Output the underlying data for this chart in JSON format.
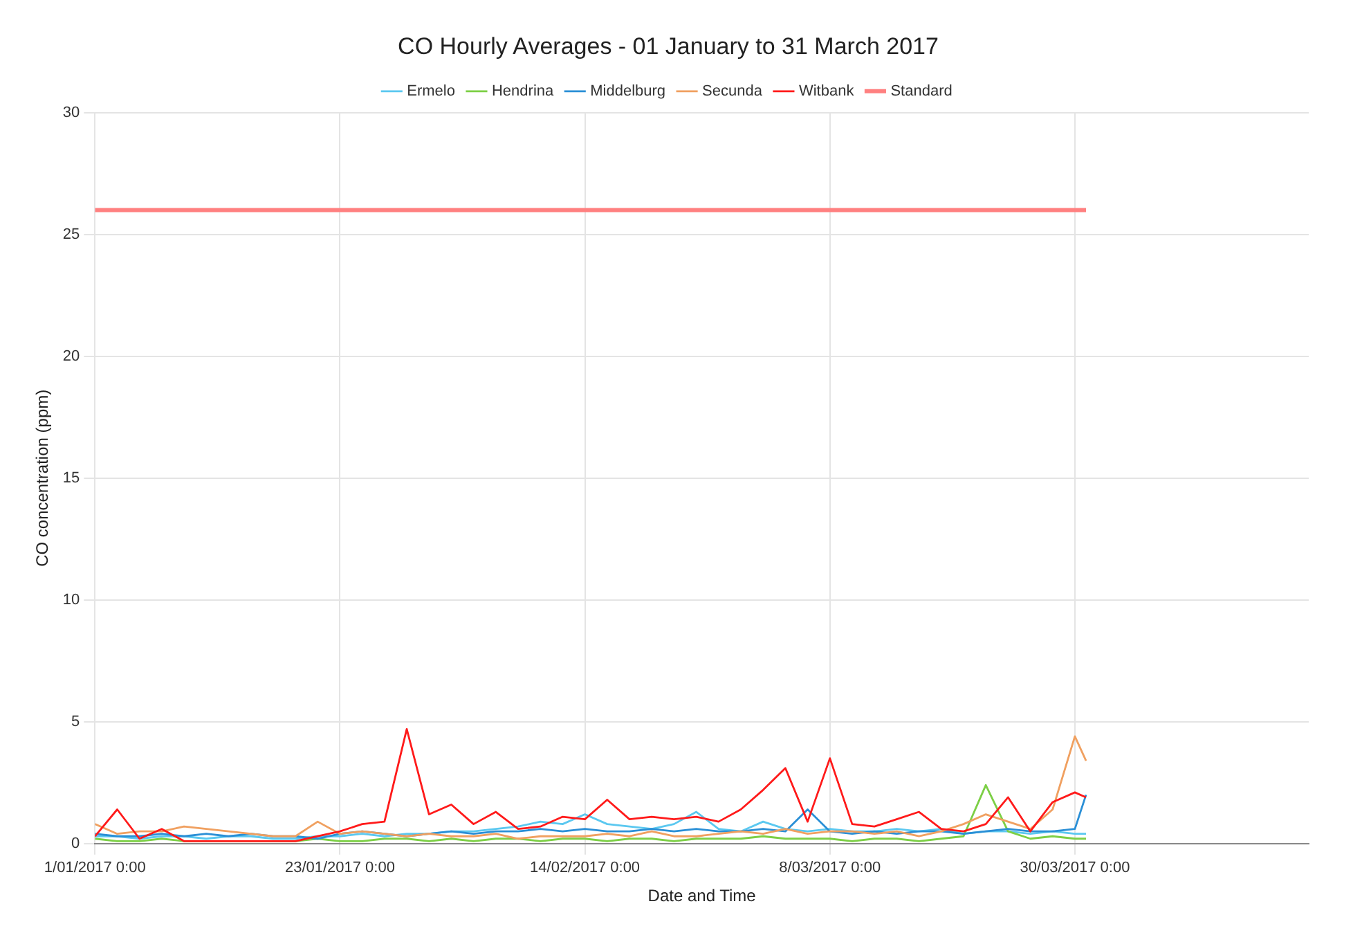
{
  "chart_data": {
    "type": "line",
    "title": "CO Hourly Averages - 01 January to 31 March 2017",
    "xlabel": "Date and Time",
    "ylabel": "CO concentration (ppm)",
    "x": [
      "2017-01-01",
      "2017-01-03",
      "2017-01-05",
      "2017-01-07",
      "2017-01-09",
      "2017-01-11",
      "2017-01-13",
      "2017-01-15",
      "2017-01-17",
      "2017-01-19",
      "2017-01-21",
      "2017-01-23",
      "2017-01-25",
      "2017-01-27",
      "2017-01-29",
      "2017-01-31",
      "2017-02-02",
      "2017-02-04",
      "2017-02-06",
      "2017-02-08",
      "2017-02-10",
      "2017-02-12",
      "2017-02-14",
      "2017-02-16",
      "2017-02-18",
      "2017-02-20",
      "2017-02-22",
      "2017-02-24",
      "2017-02-26",
      "2017-02-28",
      "2017-03-02",
      "2017-03-04",
      "2017-03-06",
      "2017-03-08",
      "2017-03-10",
      "2017-03-12",
      "2017-03-14",
      "2017-03-16",
      "2017-03-18",
      "2017-03-20",
      "2017-03-22",
      "2017-03-24",
      "2017-03-26",
      "2017-03-28",
      "2017-03-30",
      "2017-03-31"
    ],
    "series": [
      {
        "name": "Ermelo",
        "color": "#5bc8f0",
        "values": [
          0.3,
          0.3,
          0.2,
          0.3,
          0.3,
          0.2,
          0.3,
          0.3,
          0.2,
          0.2,
          0.3,
          0.3,
          0.4,
          0.3,
          0.4,
          0.4,
          0.5,
          0.5,
          0.6,
          0.7,
          0.9,
          0.8,
          1.2,
          0.8,
          0.7,
          0.6,
          0.8,
          1.3,
          0.6,
          0.5,
          0.9,
          0.6,
          0.5,
          0.6,
          0.5,
          0.5,
          0.6,
          0.5,
          0.6,
          0.4,
          0.5,
          0.5,
          0.4,
          0.5,
          0.4,
          0.4
        ]
      },
      {
        "name": "Hendrina",
        "color": "#7ccf45",
        "values": [
          0.2,
          0.1,
          0.1,
          0.2,
          0.1,
          0.1,
          0.1,
          0.1,
          0.1,
          0.1,
          0.2,
          0.1,
          0.1,
          0.2,
          0.2,
          0.1,
          0.2,
          0.1,
          0.2,
          0.2,
          0.1,
          0.2,
          0.2,
          0.1,
          0.2,
          0.2,
          0.1,
          0.2,
          0.2,
          0.2,
          0.3,
          0.2,
          0.2,
          0.2,
          0.1,
          0.2,
          0.2,
          0.1,
          0.2,
          0.3,
          2.4,
          0.5,
          0.2,
          0.3,
          0.2,
          0.2
        ]
      },
      {
        "name": "Middelburg",
        "color": "#2a8fd6",
        "values": [
          0.4,
          0.3,
          0.3,
          0.4,
          0.3,
          0.4,
          0.3,
          0.4,
          0.3,
          0.3,
          0.2,
          0.4,
          0.5,
          0.4,
          0.3,
          0.4,
          0.5,
          0.4,
          0.5,
          0.5,
          0.6,
          0.5,
          0.6,
          0.5,
          0.5,
          0.6,
          0.5,
          0.6,
          0.5,
          0.5,
          0.6,
          0.5,
          1.4,
          0.5,
          0.4,
          0.5,
          0.4,
          0.5,
          0.5,
          0.4,
          0.5,
          0.6,
          0.5,
          0.5,
          0.6,
          2.0
        ]
      },
      {
        "name": "Secunda",
        "color": "#f0a060",
        "values": [
          0.8,
          0.4,
          0.5,
          0.5,
          0.7,
          0.6,
          0.5,
          0.4,
          0.3,
          0.3,
          0.9,
          0.4,
          0.5,
          0.4,
          0.3,
          0.4,
          0.3,
          0.3,
          0.4,
          0.2,
          0.3,
          0.3,
          0.3,
          0.4,
          0.3,
          0.5,
          0.3,
          0.3,
          0.4,
          0.5,
          0.4,
          0.6,
          0.4,
          0.5,
          0.5,
          0.4,
          0.5,
          0.3,
          0.5,
          0.8,
          1.2,
          0.9,
          0.6,
          1.4,
          4.4,
          3.4
        ]
      },
      {
        "name": "Witbank",
        "color": "#ff1a1a",
        "values": [
          0.3,
          1.4,
          0.2,
          0.6,
          0.1,
          0.1,
          0.1,
          0.1,
          0.1,
          0.1,
          0.3,
          0.5,
          0.8,
          0.9,
          4.7,
          1.2,
          1.6,
          0.8,
          1.3,
          0.6,
          0.7,
          1.1,
          1.0,
          1.8,
          1.0,
          1.1,
          1.0,
          1.1,
          0.9,
          1.4,
          2.2,
          3.1,
          0.9,
          3.5,
          0.8,
          0.7,
          1.0,
          1.3,
          0.6,
          0.5,
          0.8,
          1.9,
          0.5,
          1.7,
          2.1,
          1.9
        ]
      },
      {
        "name": "Standard",
        "color": "#ff8080",
        "x": [
          "2017-01-01",
          "2017-03-31"
        ],
        "values": [
          26,
          26
        ]
      }
    ],
    "xlim": [
      "2017-01-01",
      "2017-04-20"
    ],
    "xticks": [
      {
        "value": "2017-01-01",
        "label": "1/01/2017 0:00"
      },
      {
        "value": "2017-01-23",
        "label": "23/01/2017 0:00"
      },
      {
        "value": "2017-02-14",
        "label": "14/02/2017 0:00"
      },
      {
        "value": "2017-03-08",
        "label": "8/03/2017 0:00"
      },
      {
        "value": "2017-03-30",
        "label": "30/03/2017 0:00"
      }
    ],
    "ylim": [
      0,
      30
    ],
    "yticks": [
      0,
      5,
      10,
      15,
      20,
      25,
      30
    ],
    "grid": true,
    "legend": "top",
    "marker": "none",
    "line_style": "solid"
  }
}
